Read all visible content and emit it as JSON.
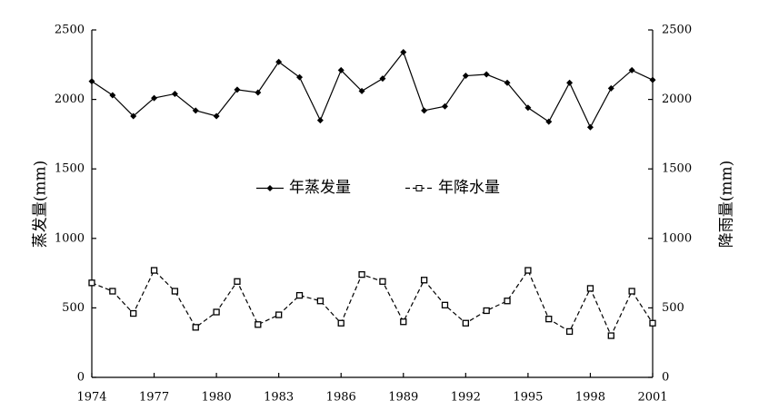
{
  "chart_data": {
    "type": "line",
    "x": [
      1974,
      1975,
      1976,
      1977,
      1978,
      1979,
      1980,
      1981,
      1982,
      1983,
      1984,
      1985,
      1986,
      1987,
      1988,
      1989,
      1990,
      1991,
      1992,
      1993,
      1994,
      1995,
      1996,
      1997,
      1998,
      1999,
      2000,
      2001
    ],
    "series": [
      {
        "name": "年蒸发量",
        "color": "#000000",
        "line_style": "solid",
        "marker": "diamond",
        "values": [
          2130,
          2030,
          1880,
          2010,
          2040,
          1920,
          1880,
          2070,
          2050,
          2270,
          2160,
          1850,
          2210,
          2060,
          2150,
          2340,
          1920,
          1950,
          2170,
          2180,
          2120,
          1940,
          1840,
          2120,
          1800,
          2080,
          2210,
          2140
        ]
      },
      {
        "name": "年降水量",
        "color": "#000000",
        "line_style": "dashed",
        "marker": "square",
        "axis": "y2",
        "values": [
          680,
          620,
          460,
          770,
          620,
          360,
          470,
          690,
          380,
          450,
          590,
          550,
          390,
          740,
          690,
          400,
          700,
          520,
          390,
          480,
          550,
          770,
          420,
          330,
          640,
          300,
          620,
          390
        ]
      }
    ],
    "ylabel": "蒸发量(mm)",
    "y2label": "降雨量(mm)",
    "xlim": [
      1974,
      2001
    ],
    "xticks": [
      1974,
      1977,
      1980,
      1983,
      1986,
      1989,
      1992,
      1995,
      1998,
      2001
    ],
    "ylim": [
      0,
      2500
    ],
    "yticks": [
      0,
      500,
      1000,
      1500,
      2000,
      2500
    ],
    "y2lim": [
      0,
      2500
    ],
    "y2ticks": [
      0,
      500,
      1000,
      1500,
      2000,
      2500
    ],
    "grid": false,
    "legend": "center"
  }
}
